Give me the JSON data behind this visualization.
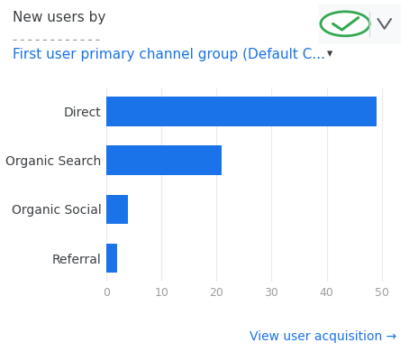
{
  "title_line1": "New users by",
  "title_line2": "First user primary channel group (Default C...",
  "categories": [
    "Direct",
    "Organic Search",
    "Organic Social",
    "Referral"
  ],
  "values": [
    49,
    21,
    4,
    2
  ],
  "bar_color": "#1a73e8",
  "xlim": [
    0,
    52
  ],
  "xticks": [
    0,
    10,
    20,
    30,
    40,
    50
  ],
  "background_color": "#ffffff",
  "bar_height": 0.6,
  "ylabel_color": "#3c4043",
  "xlabel_color": "#9e9e9e",
  "grid_color": "#e8eaed",
  "footer_text": "View user acquisition →",
  "footer_color": "#1a73e8",
  "title1_color": "#3c4043",
  "title2_color": "#1a73e8",
  "title1_size": 11,
  "title2_size": 11,
  "ylabel_size": 10,
  "xlabel_size": 9,
  "footer_size": 10
}
